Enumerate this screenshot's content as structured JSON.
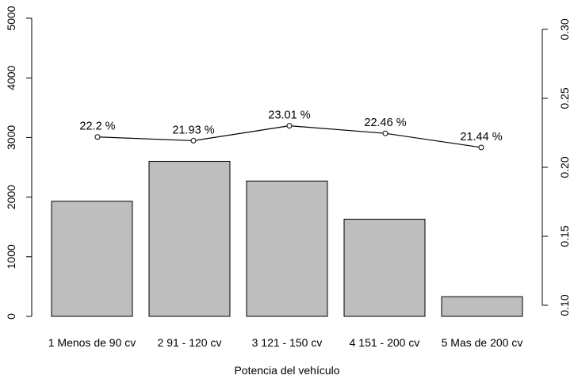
{
  "chart_data": {
    "type": "bar",
    "xlabel": "Potencia del vehículo",
    "categories": [
      "1 Menos de 90 cv",
      "2 91 - 120 cv",
      "3 121 - 150 cv",
      "4 151 - 200 cv",
      "5 Mas de 200 cv"
    ],
    "bar_values": [
      1930,
      2600,
      2270,
      1630,
      330
    ],
    "ylim_left": [
      0,
      5000
    ],
    "yticks_left": [
      "0",
      "1000",
      "2000",
      "3000",
      "4000",
      "5000"
    ],
    "line": {
      "values": [
        0.222,
        0.2193,
        0.2301,
        0.2246,
        0.2144
      ],
      "labels": [
        "22.2 %",
        "21.93 %",
        "23.01 %",
        "22.46 %",
        "21.44 %"
      ]
    },
    "ylim_right": [
      0.1,
      0.3
    ],
    "yticks_right": [
      "0.10",
      "0.15",
      "0.20",
      "0.25",
      "0.30"
    ],
    "grid": false,
    "colors": {
      "bar_fill": "#bebebe",
      "bar_stroke": "#000000",
      "line": "#000000"
    }
  }
}
